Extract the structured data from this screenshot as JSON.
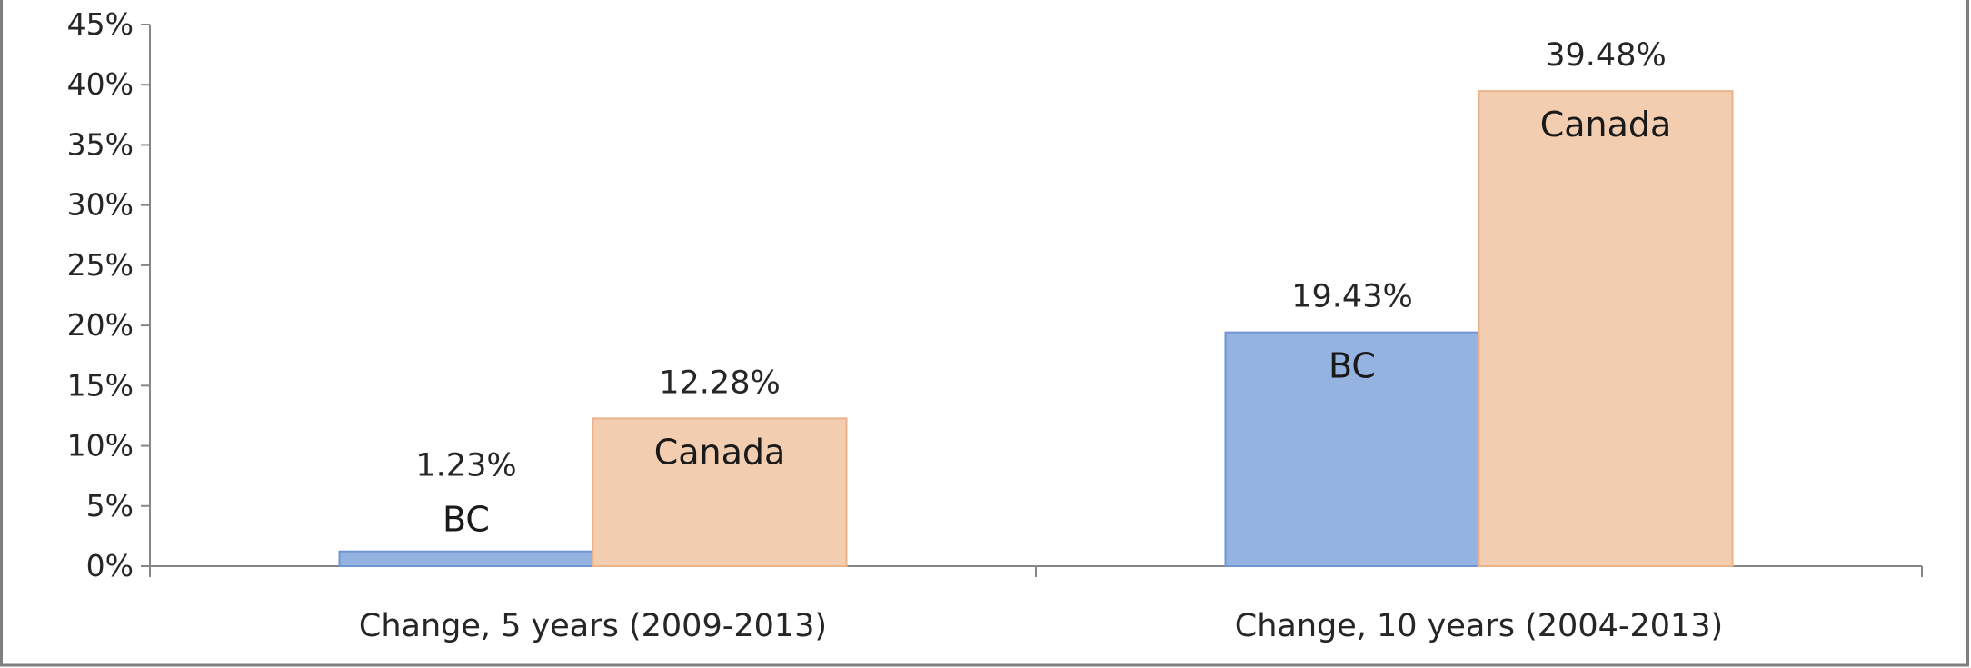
{
  "chart_data": {
    "type": "bar",
    "categories": [
      "Change, 5 years (2009-2013)",
      "Change, 10 years (2004-2013)"
    ],
    "series": [
      {
        "name": "BC",
        "values": [
          1.23,
          19.43
        ],
        "labels": [
          "1.23%",
          "19.43%"
        ],
        "color": "#95b3e0"
      },
      {
        "name": "Canada",
        "values": [
          12.28,
          39.48
        ],
        "labels": [
          "12.28%",
          "39.48%"
        ],
        "color": "#f2cdb0"
      }
    ],
    "ylim": [
      0,
      45
    ],
    "yticks": [
      "0%",
      "5%",
      "10%",
      "15%",
      "20%",
      "25%",
      "30%",
      "35%",
      "40%",
      "45%"
    ],
    "grid": false,
    "legend": "none",
    "axis_color": "#868686",
    "frame_color": "#7f7f7f"
  }
}
